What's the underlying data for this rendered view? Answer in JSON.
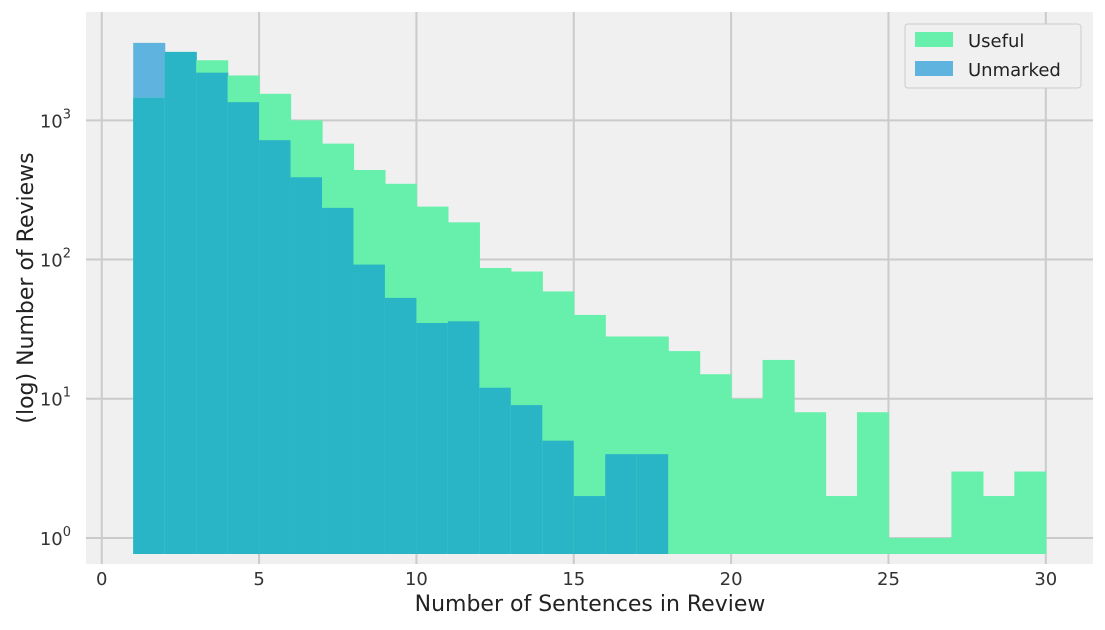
{
  "chart_data": {
    "type": "bar",
    "xlabel": "Number of Sentences in Review",
    "ylabel": "(log) Number of Reviews",
    "yscale": "log",
    "xlim": [
      -0.5,
      31.5
    ],
    "ylim": [
      0.65,
      6000
    ],
    "xticks": [
      0,
      5,
      10,
      15,
      20,
      25,
      30
    ],
    "xtick_labels": [
      "0",
      "5",
      "10",
      "15",
      "20",
      "25",
      "30"
    ],
    "yticks": [
      1,
      10,
      100,
      1000
    ],
    "ytick_labels": [
      {
        "base": "10",
        "exp": "0"
      },
      {
        "base": "10",
        "exp": "1"
      },
      {
        "base": "10",
        "exp": "2"
      },
      {
        "base": "10",
        "exp": "3"
      }
    ],
    "grid": true,
    "legend_position": "top-right",
    "bin_edges": [
      1,
      2,
      3,
      4,
      5,
      6,
      7,
      8,
      9,
      10,
      11,
      12,
      13,
      14,
      15,
      16,
      17,
      18,
      19,
      20,
      21,
      22,
      23,
      24,
      25,
      26,
      27,
      28,
      29,
      30
    ],
    "series": [
      {
        "name": "Useful",
        "color": "#66f0ac",
        "values": [
          1450,
          3100,
          2700,
          2100,
          1550,
          1000,
          680,
          440,
          350,
          240,
          185,
          87,
          82,
          59,
          40,
          28,
          28,
          22,
          15,
          10,
          19,
          8,
          2,
          8,
          1,
          1,
          3,
          2,
          3
        ]
      },
      {
        "name": "Unmarked",
        "color": "#5eb4df",
        "values": [
          3600,
          3100,
          2200,
          1350,
          720,
          390,
          235,
          92,
          53,
          35,
          36,
          12,
          9,
          5,
          2,
          4,
          4,
          0,
          0,
          0,
          0,
          0,
          0,
          0,
          0,
          0,
          0,
          0,
          0
        ]
      }
    ],
    "overlap_color": "#2ab5c6"
  }
}
